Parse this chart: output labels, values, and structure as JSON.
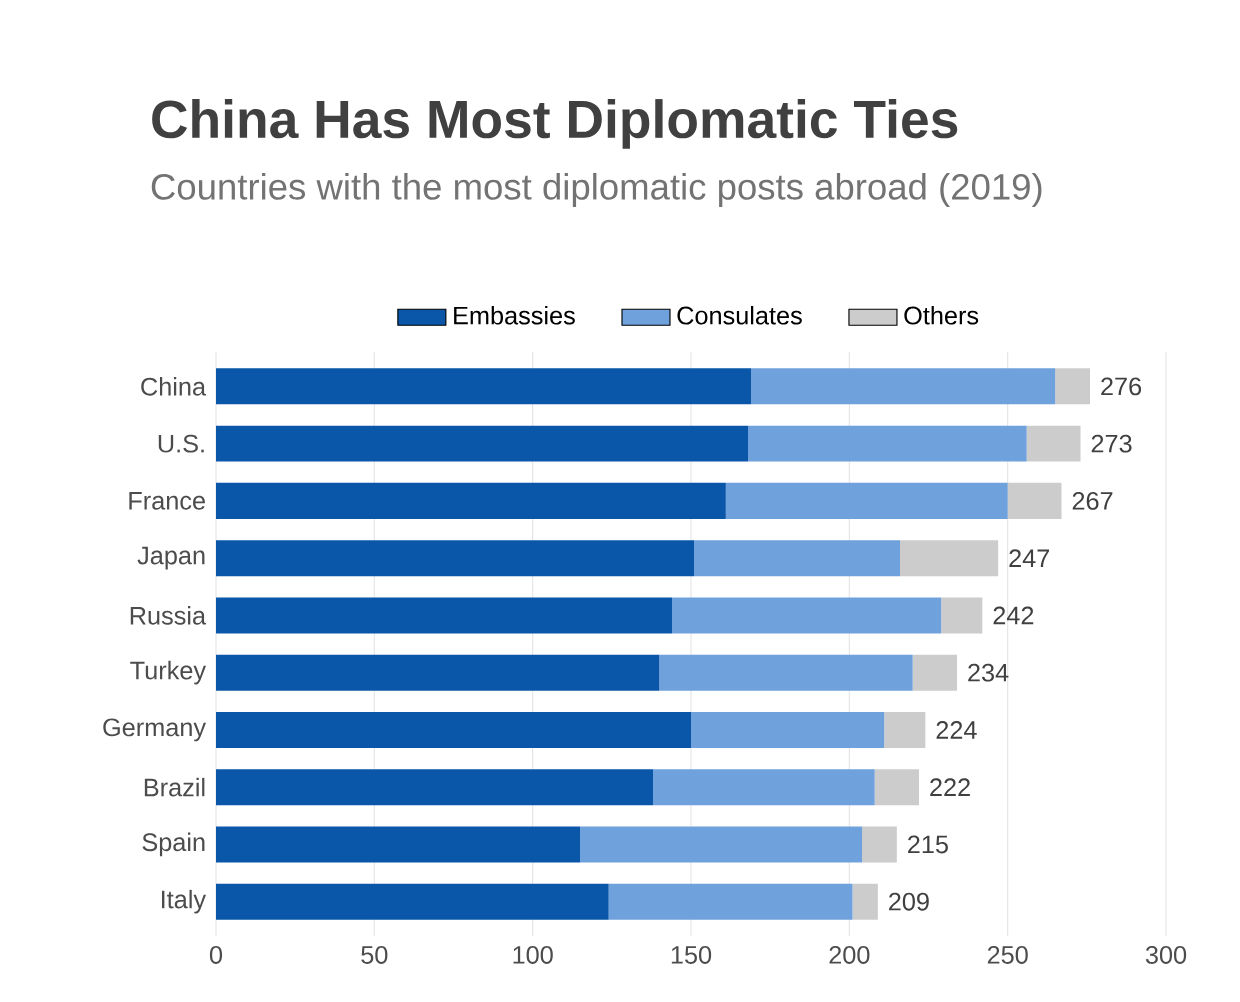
{
  "chart_data": {
    "type": "bar",
    "orientation": "horizontal",
    "stacked": true,
    "title": "China Has Most Diplomatic Ties",
    "subtitle": "Countries with the most diplomatic posts abroad (2019)",
    "categories": [
      "China",
      "U.S.",
      "France",
      "Japan",
      "Russia",
      "Turkey",
      "Germany",
      "Brazil",
      "Spain",
      "Italy"
    ],
    "series": [
      {
        "name": "Embassies",
        "color": "#0a56a8",
        "values": [
          169,
          168,
          161,
          151,
          144,
          140,
          150,
          138,
          115,
          124
        ]
      },
      {
        "name": "Consulates",
        "color": "#6fa1dd",
        "values": [
          96,
          88,
          89,
          65,
          85,
          80,
          61,
          70,
          89,
          77
        ]
      },
      {
        "name": "Others",
        "color": "#cccccc",
        "values": [
          11,
          17,
          17,
          31,
          13,
          14,
          13,
          14,
          11,
          8
        ]
      }
    ],
    "totals": [
      "276",
      "273",
      "267",
      "247",
      "242",
      "234",
      "224",
      "222",
      "215",
      "209"
    ],
    "xlim": [
      0,
      300
    ],
    "xticks": [
      0,
      50,
      100,
      150,
      200,
      250,
      300
    ],
    "grid": "x",
    "legend": "top"
  }
}
